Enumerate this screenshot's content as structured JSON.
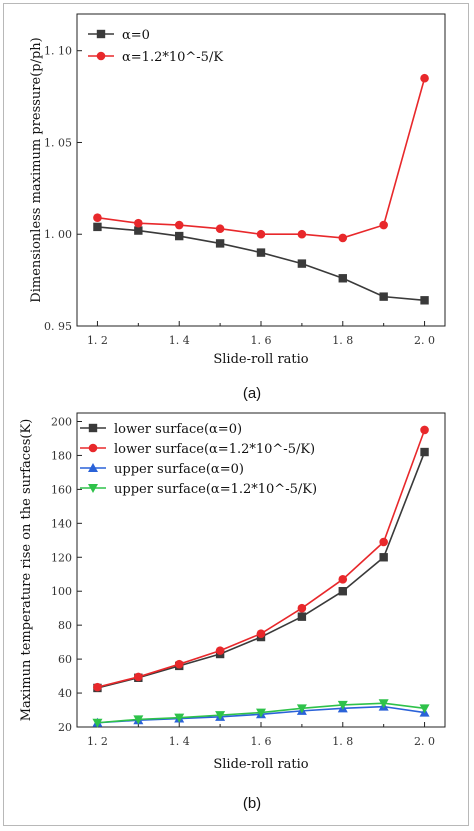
{
  "chart_data": [
    {
      "type": "line",
      "caption": "(a)",
      "xlabel": "Slide-roll ratio",
      "ylabel": "Dimensionless maximum pressure(p/ph)",
      "xlim": [
        1.15,
        2.05
      ],
      "ylim": [
        0.95,
        1.12
      ],
      "xticks": [
        "1. 2",
        "1. 4",
        "1. 6",
        "1. 8",
        "2. 0"
      ],
      "xtick_values": [
        1.2,
        1.4,
        1.6,
        1.8,
        2.0
      ],
      "yticks": [
        "0. 95",
        "1. 00",
        "1. 05",
        "1. 10"
      ],
      "ytick_values": [
        0.95,
        1.0,
        1.05,
        1.1
      ],
      "legend": "top-left",
      "x": [
        1.2,
        1.3,
        1.4,
        1.5,
        1.6,
        1.7,
        1.8,
        1.9,
        2.0
      ],
      "series": [
        {
          "name": "α=0",
          "color": "#3a3a3a",
          "marker": "square",
          "values": [
            1.004,
            1.002,
            0.999,
            0.995,
            0.99,
            0.984,
            0.976,
            0.966,
            0.964
          ]
        },
        {
          "name": "α=1.2*10^-5/K",
          "color": "#e8282b",
          "marker": "circle",
          "values": [
            1.009,
            1.006,
            1.005,
            1.003,
            1.0,
            1.0,
            0.998,
            1.005,
            1.085
          ]
        }
      ]
    },
    {
      "type": "line",
      "caption": "(b)",
      "xlabel": "Slide-roll ratio",
      "ylabel": "Maximun temperature rise on the surfaces(K)",
      "xlim": [
        1.15,
        2.05
      ],
      "ylim": [
        20,
        205
      ],
      "xticks": [
        "1. 2",
        "1. 4",
        "1. 6",
        "1. 8",
        "2. 0"
      ],
      "xtick_values": [
        1.2,
        1.4,
        1.6,
        1.8,
        2.0
      ],
      "yticks": [
        "20",
        "40",
        "60",
        "80",
        "100",
        "120",
        "140",
        "160",
        "180",
        "200"
      ],
      "ytick_values": [
        20,
        40,
        60,
        80,
        100,
        120,
        140,
        160,
        180,
        200
      ],
      "legend": "top-left",
      "x": [
        1.2,
        1.3,
        1.4,
        1.5,
        1.6,
        1.7,
        1.8,
        1.9,
        2.0
      ],
      "series": [
        {
          "name": "lower surface(α=0)",
          "color": "#3a3a3a",
          "marker": "square",
          "values": [
            43,
            49,
            56,
            63,
            73,
            85,
            100,
            120,
            182
          ]
        },
        {
          "name": "lower surface(α=1.2*10^-5/K)",
          "color": "#e8282b",
          "marker": "circle",
          "values": [
            43.5,
            49.5,
            57,
            65,
            75,
            90,
            107,
            129,
            195
          ]
        },
        {
          "name": "upper surface(α=0)",
          "color": "#2a62d8",
          "marker": "triangle-up",
          "values": [
            22.5,
            24,
            25,
            26,
            27.5,
            29.5,
            31,
            32,
            28.5
          ]
        },
        {
          "name": "upper surface(α=1.2*10^-5/K)",
          "color": "#2ec24a",
          "marker": "triangle-down",
          "values": [
            22.5,
            24.5,
            25.5,
            27,
            28.5,
            31,
            33,
            34,
            31
          ]
        }
      ]
    }
  ]
}
